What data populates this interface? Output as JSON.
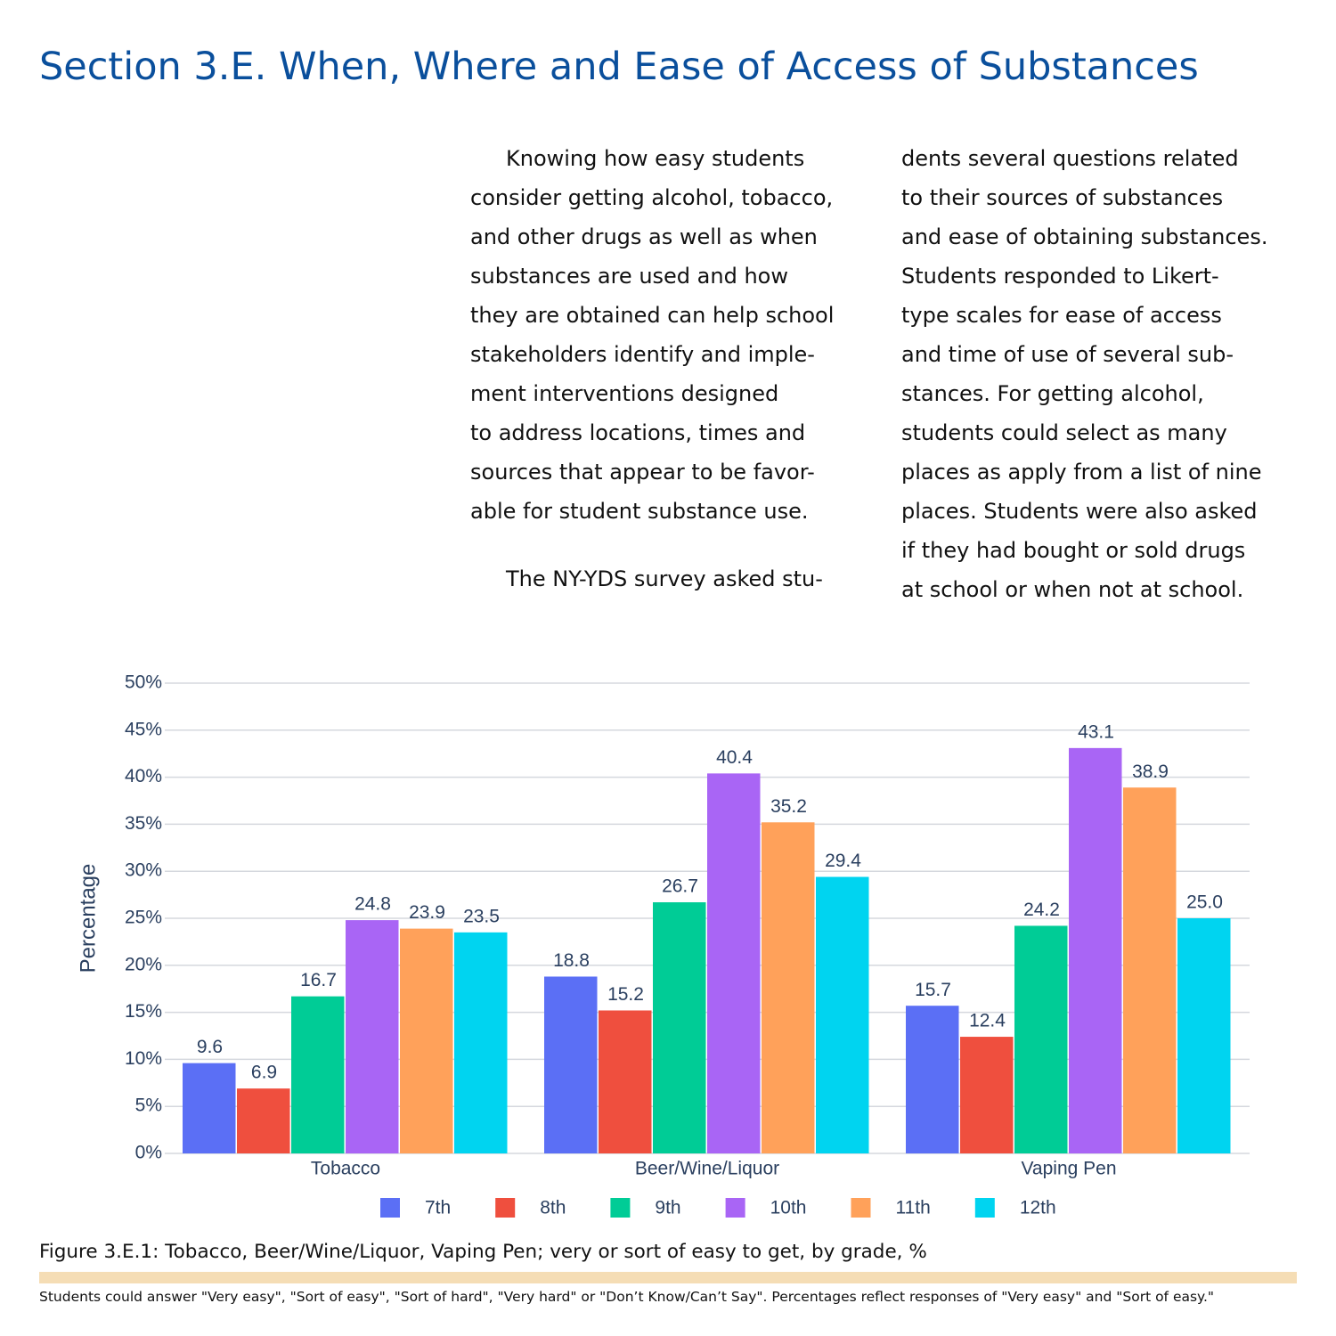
{
  "header": {
    "title": "Section 3.E.  When, Where and Ease of Access of Substances"
  },
  "body": {
    "columns": [
      {
        "lines": [
          "Knowing how easy students",
          "consider getting alcohol, tobacco,",
          "and other drugs as well as when",
          "substances are used and how",
          "they are obtained can help school",
          "stakeholders identify and imple-",
          "ment interventions designed",
          "to address locations, times and",
          "sources that appear to be favor-",
          "able for student substance use."
        ],
        "next_paragraph": "The NY-YDS survey asked stu-"
      },
      {
        "lines": [
          "dents several questions related",
          "to their sources of substances",
          "and ease of obtaining substances.",
          "Students responded to Likert-",
          "type scales for ease of access",
          "and time of use of several sub-",
          "stances. For getting alcohol,",
          "students could select as many",
          "places as apply from a list of nine",
          "places. Students were also asked",
          "if they had bought or sold drugs",
          "at school or when not at school."
        ]
      }
    ]
  },
  "chart_data": {
    "type": "bar",
    "y_label": "Percentage",
    "categories": [
      "Tobacco",
      "Beer/Wine/Liquor",
      "Vaping Pen"
    ],
    "series": [
      {
        "name": "7th",
        "color": "#5b6ff5",
        "values": [
          9.6,
          18.8,
          15.7
        ],
        "value_labels": [
          "9.6",
          "18.8",
          "15.7"
        ]
      },
      {
        "name": "8th",
        "color": "#ef4f3e",
        "values": [
          6.9,
          15.2,
          12.4
        ],
        "value_labels": [
          "6.9",
          "15.2",
          "12.4"
        ]
      },
      {
        "name": "9th",
        "color": "#00cc96",
        "values": [
          16.7,
          26.7,
          24.2
        ],
        "value_labels": [
          "16.7",
          "26.7",
          "24.2"
        ]
      },
      {
        "name": "10th",
        "color": "#a965f5",
        "values": [
          24.8,
          40.4,
          43.1
        ],
        "value_labels": [
          "24.8",
          "40.4",
          "43.1"
        ]
      },
      {
        "name": "11th",
        "color": "#ffa15a",
        "values": [
          23.9,
          35.2,
          38.9
        ],
        "value_labels": [
          "23.9",
          "35.2",
          "38.9"
        ]
      },
      {
        "name": "12th",
        "color": "#00d4f0",
        "values": [
          23.5,
          29.4,
          25.0
        ],
        "value_labels": [
          "23.5",
          "29.4",
          "25.0"
        ]
      }
    ],
    "ylim": [
      0,
      50
    ],
    "yticks": [
      {
        "value": 0,
        "label": "0%"
      },
      {
        "value": 5,
        "label": "5%"
      },
      {
        "value": 10,
        "label": "10%"
      },
      {
        "value": 15,
        "label": "15%"
      },
      {
        "value": 20,
        "label": "20%"
      },
      {
        "value": 25,
        "label": "25%"
      },
      {
        "value": 30,
        "label": "30%"
      },
      {
        "value": 35,
        "label": "35%"
      },
      {
        "value": 40,
        "label": "40%"
      },
      {
        "value": 45,
        "label": "45%"
      },
      {
        "value": 50,
        "label": "50%"
      }
    ],
    "grid": true
  },
  "caption": "Figure 3.E.1: Tobacco, Beer/Wine/Liquor, Vaping Pen; very or sort of easy to get, by grade, %",
  "footnote": "Students could answer \"Very easy\", \"Sort of easy\", \"Sort of hard\", \"Very hard\" or \"Don’t Know/Can’t Say\". Percentages reflect responses of \"Very easy\" and \"Sort of easy.\""
}
